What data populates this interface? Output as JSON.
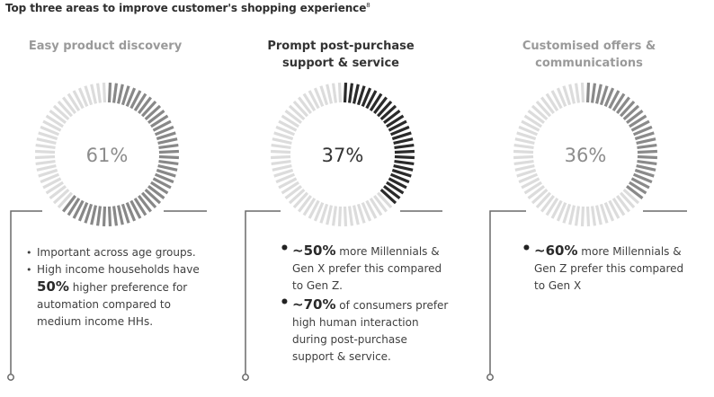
{
  "title": "Top three areas to improve customer's shopping experience",
  "title_note": "8",
  "colors": {
    "p1_fill": "#888888",
    "p2_fill": "#2a2a2a",
    "p3_fill": "#8a8a8a",
    "ring_empty": "#dcdcdc",
    "pct_light": "#8c8c8c",
    "pct_dark": "#333333",
    "line": "#6a6a6a"
  },
  "chart_data": [
    {
      "type": "pie",
      "title": "Easy product discovery",
      "values": [
        61
      ],
      "label": "61%"
    },
    {
      "type": "pie",
      "title": "Prompt post-purchase support & service",
      "values": [
        37
      ],
      "label": "37%"
    },
    {
      "type": "pie",
      "title": "Customised offers & communications",
      "values": [
        36
      ],
      "label": "36%"
    }
  ],
  "panels": [
    {
      "title_lines": [
        "Easy product discovery"
      ],
      "pct_label": "61%",
      "bullets": {
        "b1": "Important across age groups.",
        "b2_line1": "High income households have",
        "b2_em": "50%",
        "b2_line2": " higher preference for",
        "b2_line3": "automation compared to",
        "b2_line4": "medium income HHs."
      }
    },
    {
      "title_lines": [
        "Prompt post-purchase",
        "support & service"
      ],
      "pct_label": "37%",
      "bullets": {
        "b1_em": "~50%",
        "b1_line1": " more Millennials &",
        "b1_line2": "Gen X prefer this compared",
        "b1_line3": "to Gen Z.",
        "b2_em": "~70%",
        "b2_line1": " of consumers prefer",
        "b2_line2": "high human interaction",
        "b2_line3": "during post-purchase",
        "b2_line4": "support & service."
      }
    },
    {
      "title_lines": [
        "Customised offers &",
        "communications"
      ],
      "pct_label": "36%",
      "bullets": {
        "b1_em": "~60%",
        "b1_line1": " more Millennials &",
        "b1_line2": "Gen Z prefer this compared",
        "b1_line3": "to Gen X"
      }
    }
  ]
}
